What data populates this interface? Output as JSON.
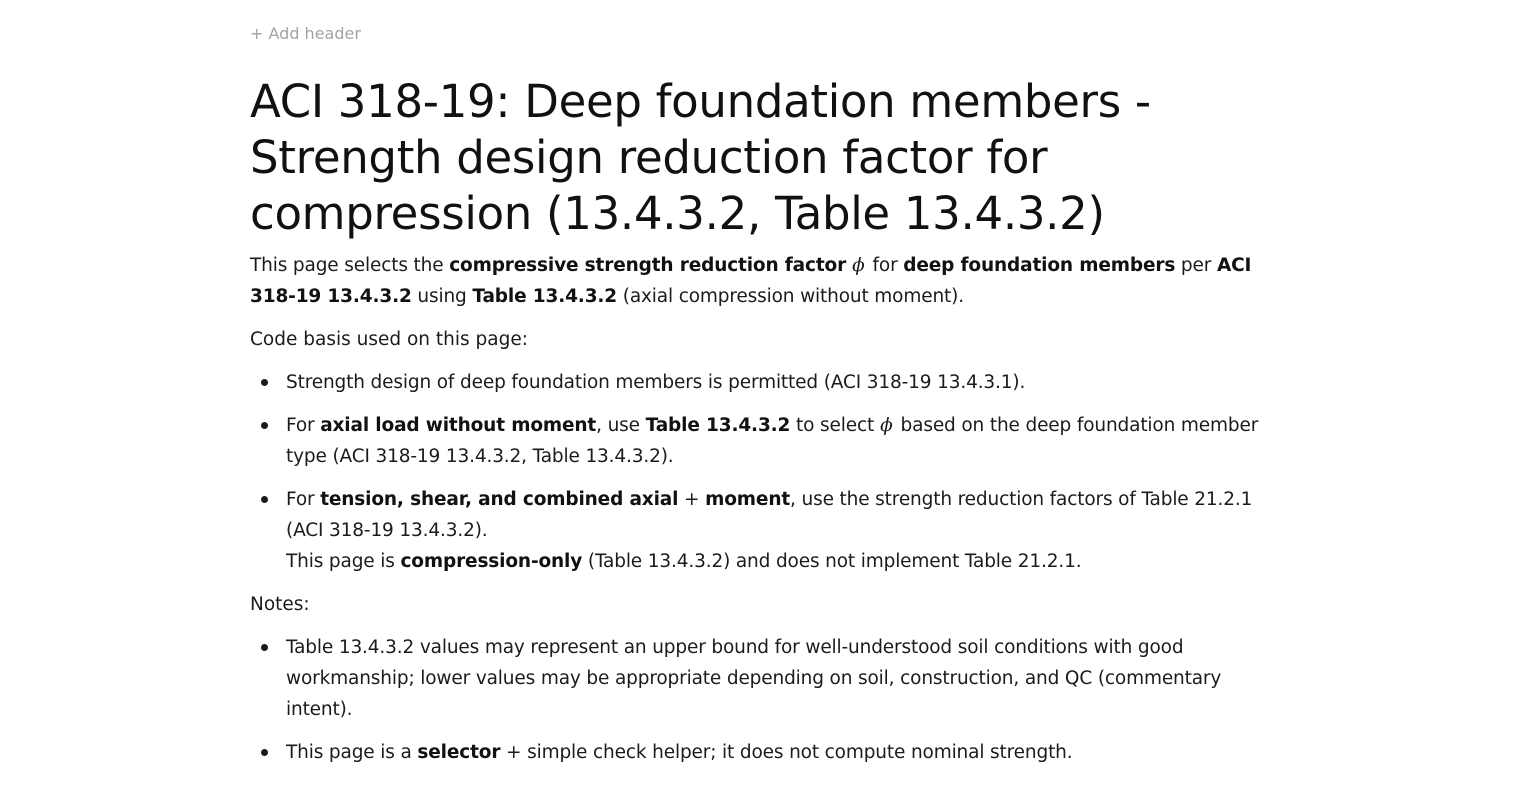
{
  "header": {
    "add_header": "+ Add header"
  },
  "title": {
    "line1": "ACI 318-19: Deep foundation members -",
    "line2": "Strength design reduction factor for",
    "line3": "compression (13.4.3.2, Table 13.4.3.2)"
  },
  "intro": {
    "t1": "This page selects the ",
    "b1": "compressive strength reduction factor",
    "phi": "ϕ",
    "t2": "for ",
    "b2": "deep foundation members",
    "t3": " per ",
    "b3": "ACI 318-19 13.4.3.2",
    "t4": " using ",
    "b4": "Table 13.4.3.2",
    "t5": " (axial compression without moment)."
  },
  "code_basis": {
    "label": "Code basis used on this page:",
    "item1": {
      "t1": "Strength design of deep foundation members is permitted (ACI 318-19 13.4.3.1)."
    },
    "item2": {
      "t1": "For ",
      "b1": "axial load without moment",
      "t2": ", use ",
      "b2": "Table 13.4.3.2",
      "t3": " to select",
      "phi": "ϕ",
      "t4": "based on the deep foundation member type (ACI 318-19 13.4.3.2, Table 13.4.3.2)."
    },
    "item3": {
      "t1": "For ",
      "b1": "tension, shear, and combined axial",
      "t2": " + ",
      "b2": "moment",
      "t3": ", use the strength reduction factors of Table 21.2.1 (ACI 318-19 13.4.3.2).",
      "t4": "This page is ",
      "b3": "compression-only",
      "t5": " (Table 13.4.3.2) and does not implement Table 21.2.1."
    }
  },
  "notes": {
    "label": "Notes:",
    "item1": {
      "t1": "Table 13.4.3.2 values may represent an upper bound for well-understood soil conditions with good workmanship; lower values may be appropriate depending on soil, construction, and QC (commentary intent)."
    },
    "item2": {
      "t1": "This page is a ",
      "b1": "selector",
      "t2": " + simple check helper; it does not compute nominal strength."
    }
  }
}
